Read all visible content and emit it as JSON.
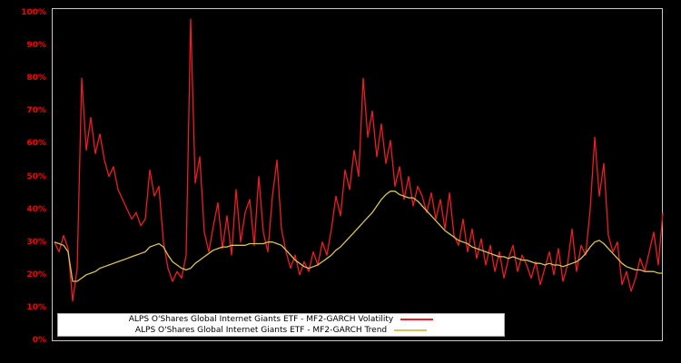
{
  "colors": {
    "background": "#000000",
    "plot_border": "#c8c8c8",
    "tick_label": "#ff0000",
    "legend_bg": "#ffffff",
    "volatility_line": "#ee1c25",
    "trend_line": "#d6c359"
  },
  "chart_data": {
    "type": "line",
    "title": "",
    "xlabel": "",
    "ylabel": "",
    "ylim": [
      0,
      100
    ],
    "grid": false,
    "legend_position": "bottom-inside",
    "y_ticks": [
      "0%",
      "10%",
      "20%",
      "30%",
      "40%",
      "50%",
      "60%",
      "70%",
      "80%",
      "90%",
      "100%"
    ],
    "series": [
      {
        "name": "ALPS O'Shares Global Internet Giants ETF - MF2-GARCH Volatility",
        "color": "#ee1c25",
        "values": [
          30,
          27,
          32,
          28,
          12,
          22,
          80,
          58,
          68,
          57,
          63,
          55,
          50,
          53,
          46,
          43,
          40,
          37,
          39,
          35,
          37,
          52,
          44,
          47,
          30,
          22,
          18,
          21,
          19,
          26,
          98,
          48,
          56,
          33,
          27,
          35,
          42,
          28,
          38,
          26,
          46,
          30,
          39,
          43,
          29,
          50,
          33,
          27,
          44,
          55,
          34,
          27,
          22,
          26,
          20,
          24,
          21,
          27,
          23,
          30,
          26,
          34,
          44,
          38,
          52,
          46,
          58,
          50,
          80,
          62,
          70,
          56,
          66,
          54,
          61,
          47,
          53,
          43,
          50,
          41,
          47,
          44,
          39,
          45,
          37,
          43,
          34,
          45,
          32,
          29,
          37,
          27,
          34,
          25,
          31,
          23,
          29,
          21,
          27,
          19,
          25,
          29,
          21,
          26,
          23,
          19,
          24,
          17,
          22,
          27,
          20,
          28,
          18,
          23,
          34,
          21,
          29,
          26,
          40,
          62,
          44,
          54,
          32,
          27,
          30,
          17,
          21,
          15,
          19,
          25,
          21,
          27,
          33,
          23,
          39
        ]
      },
      {
        "name": "ALPS O'Shares Global Internet Giants ETF - MF2-GARCH Trend",
        "color": "#d6c359",
        "values": [
          30,
          29.5,
          29,
          27,
          18,
          18,
          19,
          20,
          20.5,
          21,
          22,
          22.5,
          23,
          23.5,
          24,
          24.5,
          25,
          25.5,
          26,
          26.5,
          27,
          28.5,
          29,
          29.5,
          28.5,
          26,
          24,
          23,
          22,
          21.5,
          22,
          23.5,
          24.5,
          25.5,
          26.5,
          27.5,
          28,
          28.5,
          28.5,
          29,
          29,
          29,
          29,
          29.5,
          29.5,
          29.5,
          29.5,
          30,
          30,
          29.5,
          29,
          27.5,
          26,
          24.5,
          23.5,
          22.5,
          22,
          22.5,
          23,
          24,
          25,
          26,
          27.5,
          28.5,
          30,
          31.5,
          33,
          34.5,
          36,
          37.5,
          39,
          41,
          43,
          44.5,
          45.5,
          45.5,
          44.5,
          44,
          43.5,
          43.5,
          42.5,
          41,
          39.5,
          38,
          36.5,
          35,
          33.5,
          32.5,
          31.5,
          30.5,
          30,
          29.5,
          28.5,
          28,
          27.5,
          27,
          26.5,
          26,
          25.5,
          25.5,
          25,
          25.5,
          25,
          24.5,
          24.5,
          24,
          23.5,
          23.5,
          23,
          23.5,
          23,
          23,
          22.5,
          23,
          23.5,
          24,
          25,
          26.5,
          28.5,
          30,
          30.5,
          29.5,
          28,
          26.5,
          25,
          23.5,
          22.5,
          22,
          21.5,
          21.5,
          21,
          21,
          21,
          20.5,
          20.5
        ]
      }
    ]
  }
}
